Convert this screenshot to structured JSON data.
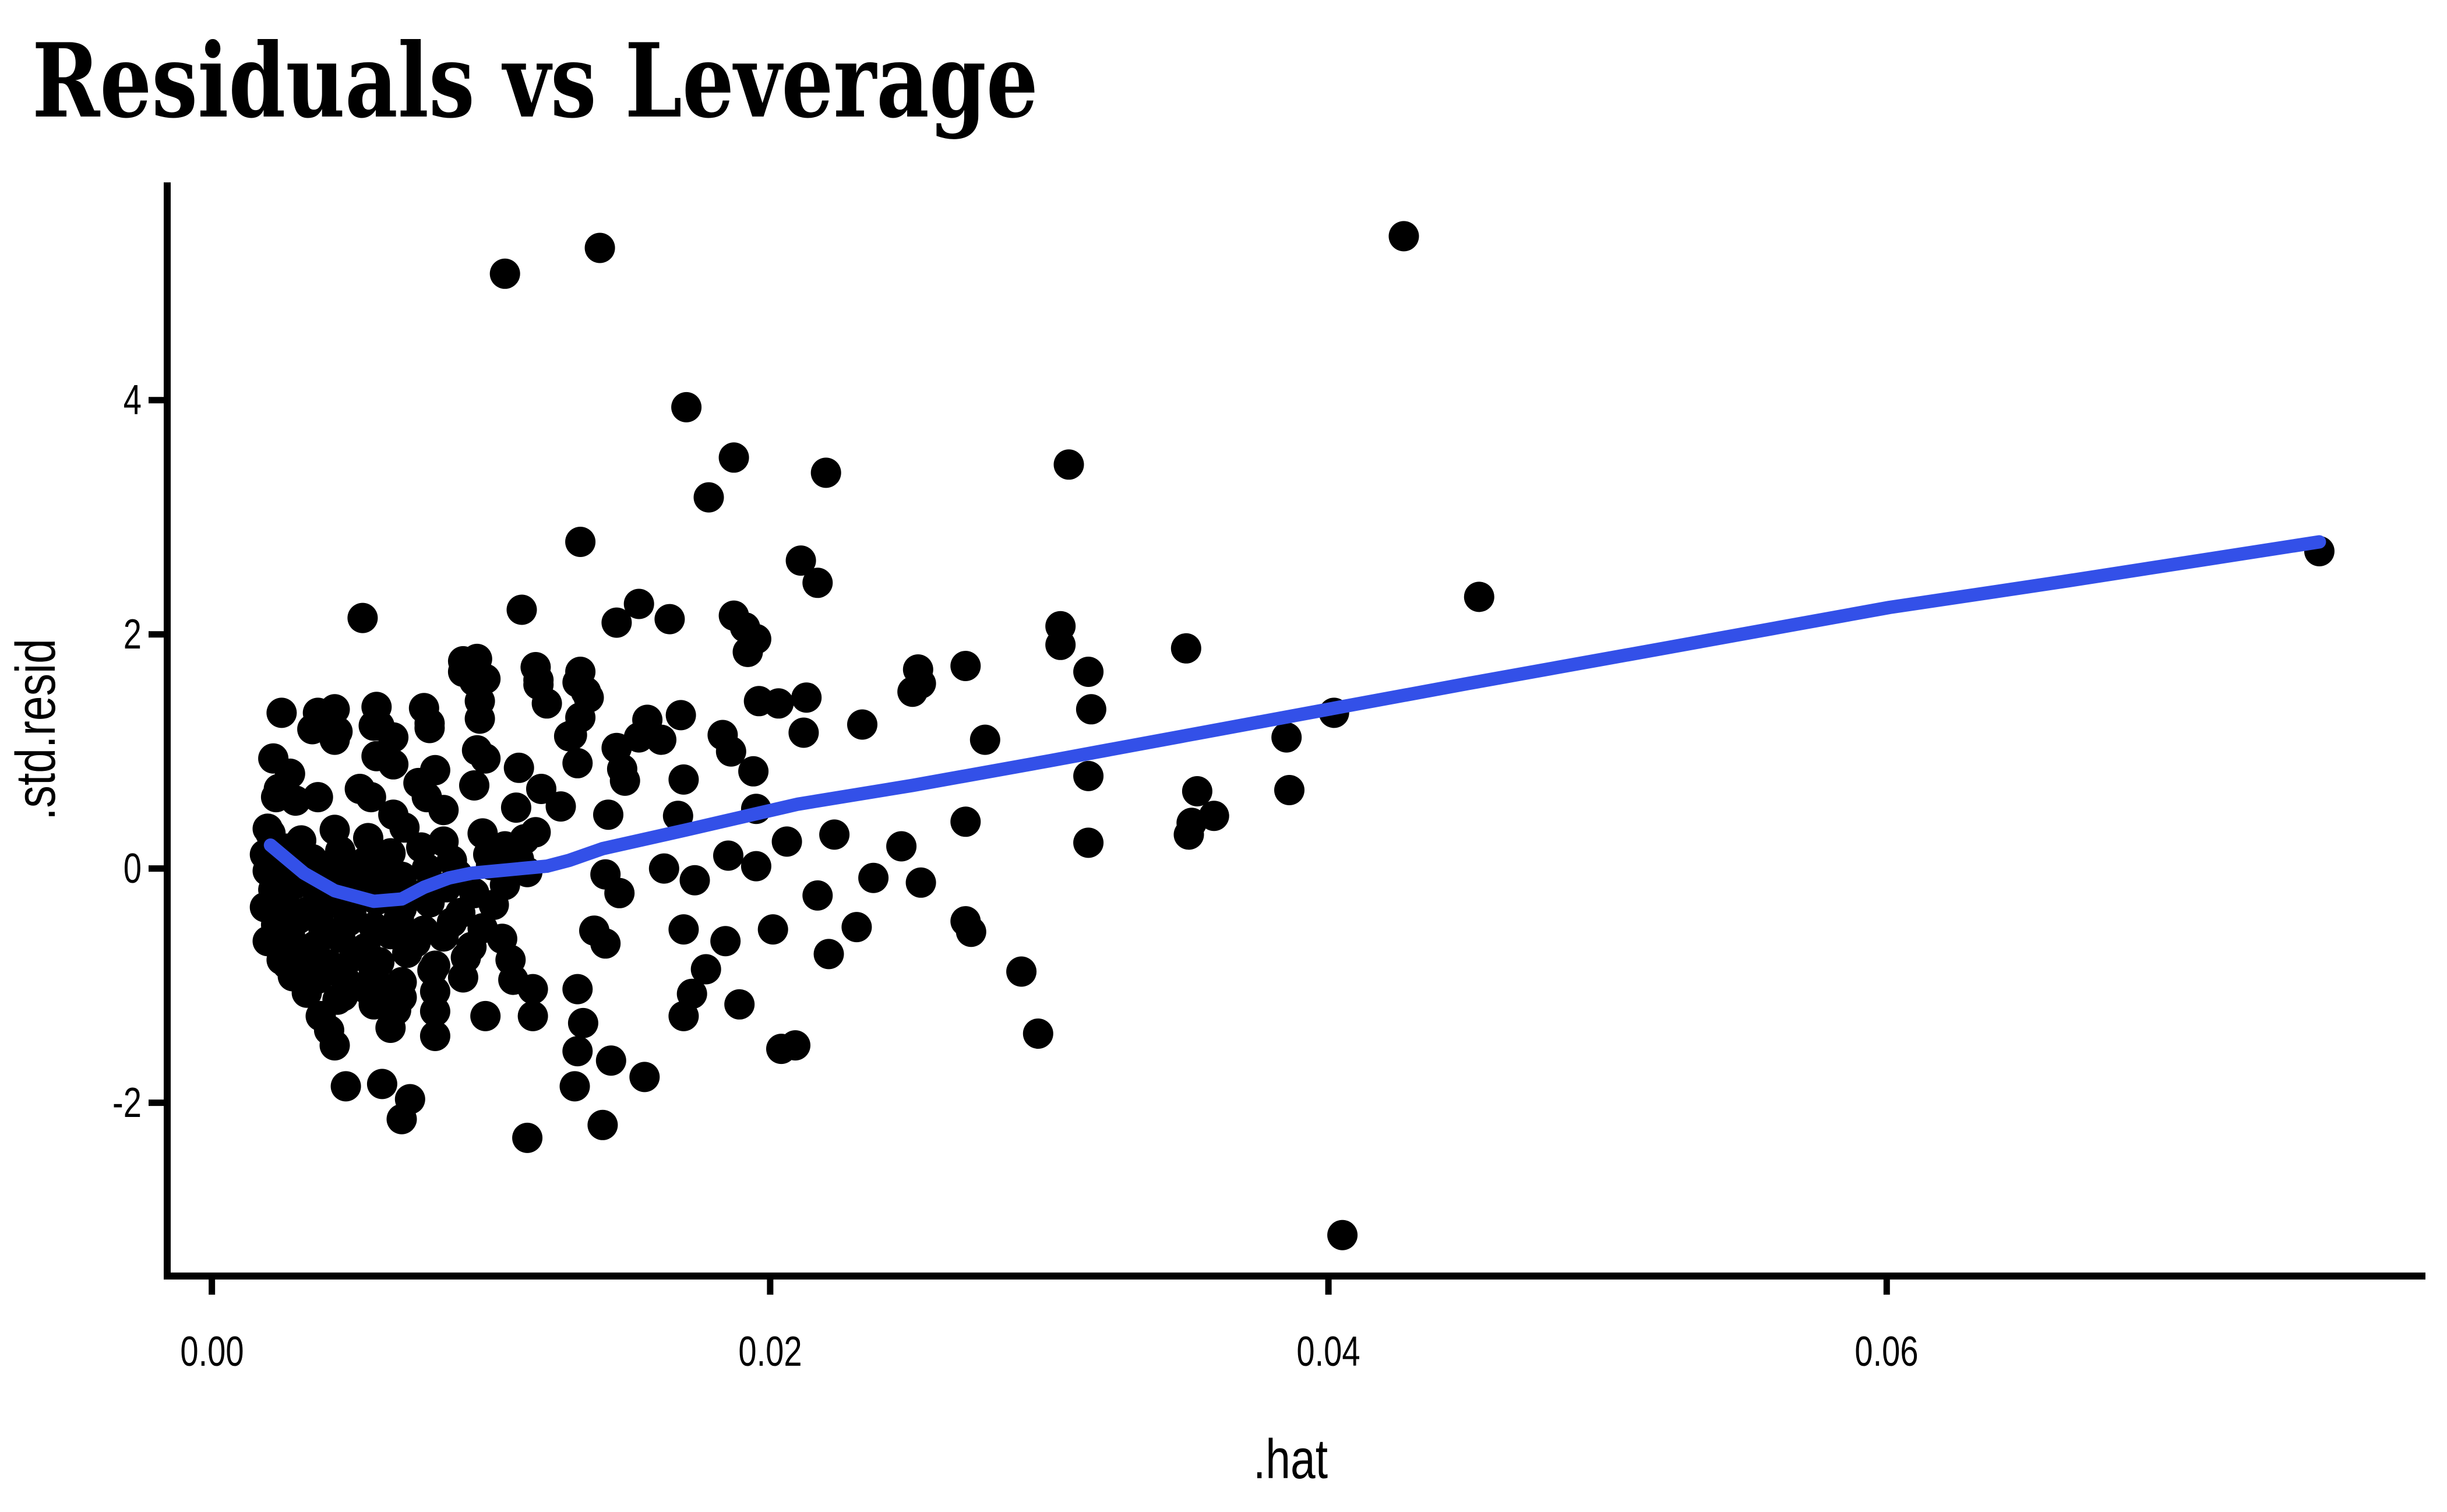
{
  "title": "Residuals vs Leverage",
  "chart_data": {
    "type": "scatter",
    "title": "Residuals vs Leverage",
    "xlabel": ".hat",
    "ylabel": ".std.resid",
    "xlim": [
      -0.0016,
      0.0793
    ],
    "ylim": [
      -3.48,
      5.86
    ],
    "grid": "off",
    "legend": "none",
    "point_color": "#000000",
    "smooth_color": "#3350E8",
    "axis_color": "#000000",
    "x_ticks": {
      "values": [
        0.0,
        0.02,
        0.04,
        0.06
      ],
      "labels": [
        "0.00",
        "0.02",
        "0.04",
        "0.06"
      ]
    },
    "y_ticks": {
      "values": [
        -2,
        0,
        2,
        4
      ],
      "labels": [
        "-2",
        "0",
        "2",
        "4"
      ]
    },
    "smooth_line": [
      [
        0.0021,
        0.2
      ],
      [
        0.0033,
        -0.04
      ],
      [
        0.0044,
        -0.19
      ],
      [
        0.0058,
        -0.28
      ],
      [
        0.0068,
        -0.26
      ],
      [
        0.0076,
        -0.16
      ],
      [
        0.0085,
        -0.08
      ],
      [
        0.0093,
        -0.04
      ],
      [
        0.0102,
        -0.02
      ],
      [
        0.0111,
        0.0
      ],
      [
        0.012,
        0.02
      ],
      [
        0.0128,
        0.07
      ],
      [
        0.014,
        0.17
      ],
      [
        0.017,
        0.33
      ],
      [
        0.021,
        0.55
      ],
      [
        0.0251,
        0.71
      ],
      [
        0.03,
        0.92
      ],
      [
        0.035,
        1.14
      ],
      [
        0.04,
        1.36
      ],
      [
        0.045,
        1.58
      ],
      [
        0.052,
        1.88
      ],
      [
        0.0601,
        2.23
      ],
      [
        0.0663,
        2.45
      ],
      [
        0.0755,
        2.79
      ]
    ],
    "points": [
      [
        0.0105,
        5.08
      ],
      [
        0.0139,
        5.3
      ],
      [
        0.0427,
        5.4
      ],
      [
        0.017,
        3.94
      ],
      [
        0.0187,
        3.51
      ],
      [
        0.022,
        3.38
      ],
      [
        0.0178,
        3.17
      ],
      [
        0.0132,
        2.79
      ],
      [
        0.0307,
        3.45
      ],
      [
        0.0755,
        2.71
      ],
      [
        0.0454,
        2.32
      ],
      [
        0.0211,
        2.63
      ],
      [
        0.0217,
        2.44
      ],
      [
        0.0054,
        2.14
      ],
      [
        0.0111,
        2.21
      ],
      [
        0.0153,
        2.26
      ],
      [
        0.0145,
        2.1
      ],
      [
        0.0164,
        2.13
      ],
      [
        0.0187,
        2.16
      ],
      [
        0.0191,
        2.06
      ],
      [
        0.0195,
        1.96
      ],
      [
        0.0304,
        2.07
      ],
      [
        0.0304,
        1.91
      ],
      [
        0.0192,
        1.85
      ],
      [
        0.0095,
        1.79
      ],
      [
        0.009,
        1.68
      ],
      [
        0.0098,
        1.62
      ],
      [
        0.0116,
        1.72
      ],
      [
        0.0117,
        1.57
      ],
      [
        0.0132,
        1.68
      ],
      [
        0.0134,
        1.51
      ],
      [
        0.0096,
        1.43
      ],
      [
        0.027,
        1.73
      ],
      [
        0.0254,
        1.58
      ],
      [
        0.0349,
        1.88
      ],
      [
        0.0314,
        1.68
      ],
      [
        0.0315,
        1.36
      ],
      [
        0.0251,
        1.51
      ],
      [
        0.0253,
        1.7
      ],
      [
        0.0196,
        1.43
      ],
      [
        0.0203,
        1.41
      ],
      [
        0.0213,
        1.46
      ],
      [
        0.009,
        1.77
      ],
      [
        0.0094,
        1.6
      ],
      [
        0.0117,
        1.61
      ],
      [
        0.012,
        1.41
      ],
      [
        0.0131,
        1.59
      ],
      [
        0.0135,
        1.46
      ],
      [
        0.0025,
        1.33
      ],
      [
        0.0038,
        1.33
      ],
      [
        0.0044,
        1.36
      ],
      [
        0.0036,
        1.19
      ],
      [
        0.0045,
        1.17
      ],
      [
        0.0059,
        1.38
      ],
      [
        0.0076,
        1.37
      ],
      [
        0.0078,
        1.24
      ],
      [
        0.006,
        1.22
      ],
      [
        0.0044,
        1.1
      ],
      [
        0.0058,
        1.22
      ],
      [
        0.0078,
        1.2
      ],
      [
        0.0096,
        1.28
      ],
      [
        0.0065,
        1.12
      ],
      [
        0.0095,
        1.01
      ],
      [
        0.0132,
        1.29
      ],
      [
        0.0129,
        1.14
      ],
      [
        0.0168,
        1.31
      ],
      [
        0.0156,
        1.27
      ],
      [
        0.0153,
        1.12
      ],
      [
        0.0161,
        1.1
      ],
      [
        0.0183,
        1.14
      ],
      [
        0.0212,
        1.16
      ],
      [
        0.0233,
        1.23
      ],
      [
        0.0186,
        1.0
      ],
      [
        0.0277,
        1.1
      ],
      [
        0.0385,
        1.12
      ],
      [
        0.0402,
        1.33
      ],
      [
        0.0128,
        1.13
      ],
      [
        0.011,
        0.86
      ],
      [
        0.0098,
        0.94
      ],
      [
        0.0194,
        0.83
      ],
      [
        0.0147,
        0.85
      ],
      [
        0.0148,
        0.75
      ],
      [
        0.0169,
        0.76
      ],
      [
        0.0118,
        0.68
      ],
      [
        0.0125,
        0.53
      ],
      [
        0.0142,
        0.46
      ],
      [
        0.0167,
        0.45
      ],
      [
        0.0195,
        0.51
      ],
      [
        0.0314,
        0.79
      ],
      [
        0.0353,
        0.66
      ],
      [
        0.0386,
        0.67
      ],
      [
        0.0059,
        0.96
      ],
      [
        0.0065,
        0.89
      ],
      [
        0.008,
        0.84
      ],
      [
        0.0094,
        0.71
      ],
      [
        0.0131,
        0.9
      ],
      [
        0.0145,
        1.03
      ],
      [
        0.0024,
        0.68
      ],
      [
        0.003,
        0.58
      ],
      [
        0.0038,
        0.61
      ],
      [
        0.0053,
        0.68
      ],
      [
        0.0057,
        0.61
      ],
      [
        0.0074,
        0.73
      ],
      [
        0.0077,
        0.61
      ],
      [
        0.0083,
        0.5
      ],
      [
        0.0109,
        0.52
      ],
      [
        0.0065,
        0.46
      ],
      [
        0.0022,
        0.94
      ],
      [
        0.0028,
        0.81
      ],
      [
        0.0023,
        0.61
      ],
      [
        0.0206,
        0.23
      ],
      [
        0.0223,
        0.29
      ],
      [
        0.0185,
        0.11
      ],
      [
        0.0195,
        0.02
      ],
      [
        0.0162,
        0.0
      ],
      [
        0.0141,
        -0.05
      ],
      [
        0.0247,
        0.19
      ],
      [
        0.0314,
        0.22
      ],
      [
        0.0351,
        0.39
      ],
      [
        0.0359,
        0.45
      ],
      [
        0.035,
        0.29
      ],
      [
        0.027,
        0.4
      ],
      [
        0.0116,
        0.31
      ],
      [
        0.0105,
        0.19
      ],
      [
        0.0107,
        0.02
      ],
      [
        0.002,
        0.34
      ],
      [
        0.0173,
        -0.1
      ],
      [
        0.0146,
        -0.21
      ],
      [
        0.0217,
        -0.23
      ],
      [
        0.0237,
        -0.08
      ],
      [
        0.0254,
        -0.12
      ],
      [
        0.027,
        -0.45
      ],
      [
        0.0272,
        -0.54
      ],
      [
        0.0141,
        -0.64
      ],
      [
        0.0137,
        -0.53
      ],
      [
        0.0184,
        -0.62
      ],
      [
        0.0221,
        -0.73
      ],
      [
        0.0201,
        -0.52
      ],
      [
        0.0231,
        -0.5
      ],
      [
        0.0169,
        -0.52
      ],
      [
        0.029,
        -0.88
      ],
      [
        0.0177,
        -0.86
      ],
      [
        0.0108,
        -0.95
      ],
      [
        0.0107,
        -0.78
      ],
      [
        0.0131,
        -1.03
      ],
      [
        0.0115,
        -1.03
      ],
      [
        0.0027,
        -0.82
      ],
      [
        0.0026,
        -0.72
      ],
      [
        0.0038,
        -0.94
      ],
      [
        0.0296,
        -1.41
      ],
      [
        0.0169,
        -1.26
      ],
      [
        0.0189,
        -1.16
      ],
      [
        0.0172,
        -1.07
      ],
      [
        0.0133,
        -1.32
      ],
      [
        0.0115,
        -1.26
      ],
      [
        0.0098,
        -1.26
      ],
      [
        0.008,
        -1.43
      ],
      [
        0.008,
        -1.22
      ],
      [
        0.0064,
        -1.36
      ],
      [
        0.0066,
        -1.21
      ],
      [
        0.0058,
        -1.16
      ],
      [
        0.0044,
        -1.51
      ],
      [
        0.0042,
        -1.38
      ],
      [
        0.0039,
        -1.26
      ],
      [
        0.0047,
        -1.09
      ],
      [
        0.0059,
        -1.05
      ],
      [
        0.0131,
        -1.56
      ],
      [
        0.0204,
        -1.54
      ],
      [
        0.0209,
        -1.51
      ],
      [
        0.0143,
        -1.64
      ],
      [
        0.0113,
        -2.3
      ],
      [
        0.014,
        -2.19
      ],
      [
        0.0068,
        -2.14
      ],
      [
        0.0071,
        -1.97
      ],
      [
        0.0048,
        -1.86
      ],
      [
        0.0061,
        -1.84
      ],
      [
        0.013,
        -1.86
      ],
      [
        0.0155,
        -1.78
      ],
      [
        0.0405,
        -3.13
      ],
      [
        0.0021,
        0.3
      ],
      [
        0.0032,
        0.24
      ],
      [
        0.0044,
        0.33
      ],
      [
        0.0056,
        0.26
      ],
      [
        0.0069,
        0.35
      ],
      [
        0.0083,
        0.23
      ],
      [
        0.0097,
        0.3
      ],
      [
        0.0112,
        0.25
      ],
      [
        0.0019,
        0.12
      ],
      [
        0.0027,
        0.17
      ],
      [
        0.0036,
        0.08
      ],
      [
        0.0046,
        0.15
      ],
      [
        0.0055,
        0.06
      ],
      [
        0.0064,
        0.13
      ],
      [
        0.0075,
        0.18
      ],
      [
        0.0086,
        0.07
      ],
      [
        0.0099,
        0.12
      ],
      [
        0.011,
        0.08
      ],
      [
        0.002,
        -0.02
      ],
      [
        0.0028,
        0.03
      ],
      [
        0.0035,
        -0.06
      ],
      [
        0.0043,
        0.01
      ],
      [
        0.0051,
        -0.04
      ],
      [
        0.006,
        0.02
      ],
      [
        0.0068,
        -0.07
      ],
      [
        0.0077,
        0.0
      ],
      [
        0.0088,
        -0.05
      ],
      [
        0.01,
        0.03
      ],
      [
        0.0113,
        -0.03
      ],
      [
        0.0022,
        -0.18
      ],
      [
        0.003,
        -0.13
      ],
      [
        0.0038,
        -0.22
      ],
      [
        0.0047,
        -0.15
      ],
      [
        0.0056,
        -0.2
      ],
      [
        0.0065,
        -0.12
      ],
      [
        0.0074,
        -0.23
      ],
      [
        0.0084,
        -0.16
      ],
      [
        0.0094,
        -0.21
      ],
      [
        0.0105,
        -0.14
      ],
      [
        0.0019,
        -0.33
      ],
      [
        0.0026,
        -0.28
      ],
      [
        0.0034,
        -0.37
      ],
      [
        0.0042,
        -0.3
      ],
      [
        0.005,
        -0.39
      ],
      [
        0.0059,
        -0.27
      ],
      [
        0.0068,
        -0.34
      ],
      [
        0.0078,
        -0.29
      ],
      [
        0.0089,
        -0.38
      ],
      [
        0.0101,
        -0.31
      ],
      [
        0.0023,
        -0.48
      ],
      [
        0.0031,
        -0.43
      ],
      [
        0.004,
        -0.52
      ],
      [
        0.0049,
        -0.45
      ],
      [
        0.0058,
        -0.5
      ],
      [
        0.0067,
        -0.42
      ],
      [
        0.0076,
        -0.53
      ],
      [
        0.0086,
        -0.46
      ],
      [
        0.0097,
        -0.51
      ],
      [
        0.002,
        -0.62
      ],
      [
        0.0028,
        -0.57
      ],
      [
        0.0037,
        -0.66
      ],
      [
        0.0046,
        -0.59
      ],
      [
        0.0055,
        -0.68
      ],
      [
        0.0064,
        -0.56
      ],
      [
        0.0073,
        -0.63
      ],
      [
        0.0083,
        -0.58
      ],
      [
        0.0093,
        -0.67
      ],
      [
        0.0104,
        -0.6
      ],
      [
        0.0025,
        -0.78
      ],
      [
        0.0033,
        -0.73
      ],
      [
        0.0042,
        -0.82
      ],
      [
        0.0051,
        -0.75
      ],
      [
        0.006,
        -0.8
      ],
      [
        0.007,
        -0.72
      ],
      [
        0.008,
        -0.83
      ],
      [
        0.0091,
        -0.76
      ],
      [
        0.0029,
        -0.92
      ],
      [
        0.0038,
        -0.88
      ],
      [
        0.0048,
        -0.96
      ],
      [
        0.0058,
        -0.9
      ],
      [
        0.0068,
        -0.97
      ],
      [
        0.0079,
        -0.87
      ],
      [
        0.009,
        -0.93
      ],
      [
        0.0034,
        -1.06
      ],
      [
        0.0045,
        -1.12
      ],
      [
        0.0056,
        -1.04
      ],
      [
        0.0068,
        -1.1
      ],
      [
        0.008,
        -1.05
      ]
    ]
  }
}
